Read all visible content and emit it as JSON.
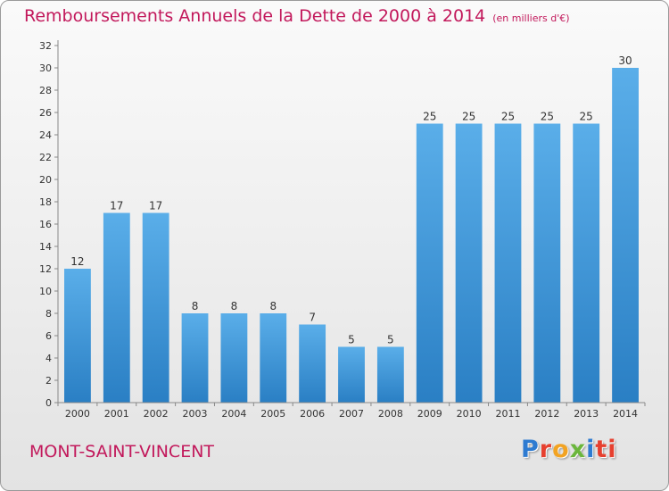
{
  "header": {
    "title": "Remboursements Annuels de la Dette de 2000 à 2014",
    "unit": "(en milliers d'€)"
  },
  "footer": {
    "town": "MONT-SAINT-VINCENT",
    "logo": [
      "P",
      "r",
      "o",
      "x",
      "i",
      "ti"
    ]
  },
  "colors": {
    "accent": "#c2185b",
    "bar_light": "#5aaee9",
    "bar_dark": "#2a7fc4"
  },
  "chart_data": {
    "type": "bar",
    "title": "Remboursements Annuels de la Dette de 2000 à 2014",
    "xlabel": "",
    "ylabel": "",
    "categories": [
      "2000",
      "2001",
      "2002",
      "2003",
      "2004",
      "2005",
      "2006",
      "2007",
      "2008",
      "2009",
      "2010",
      "2011",
      "2012",
      "2013",
      "2014"
    ],
    "values": [
      12,
      17,
      17,
      8,
      8,
      8,
      7,
      5,
      5,
      25,
      25,
      25,
      25,
      25,
      30
    ],
    "ylim": [
      0,
      32
    ],
    "yticks": [
      0,
      2,
      4,
      6,
      8,
      10,
      12,
      14,
      16,
      18,
      20,
      22,
      24,
      26,
      28,
      30,
      32
    ],
    "grid": false,
    "legend": "none"
  }
}
